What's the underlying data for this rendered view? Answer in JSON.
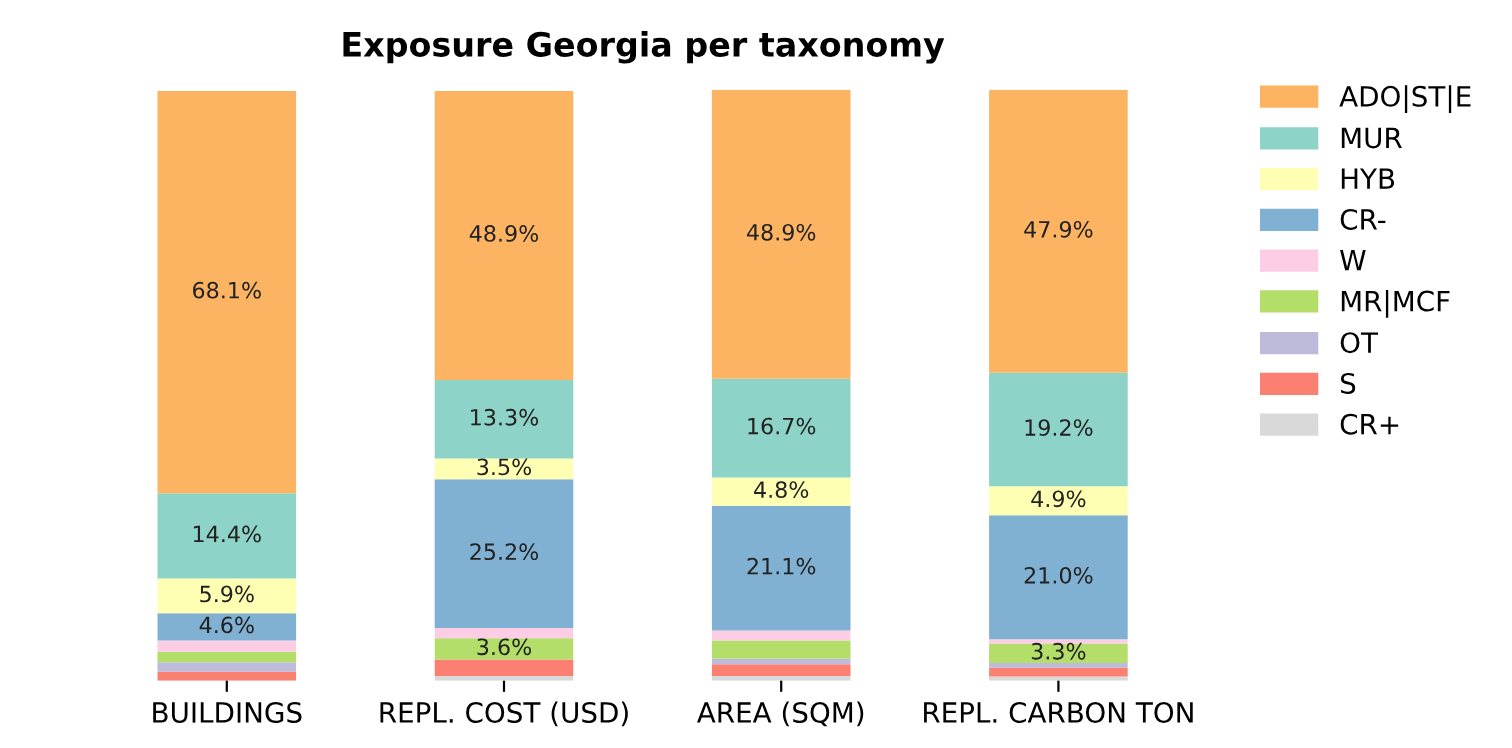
{
  "chart_data": {
    "type": "bar",
    "title": "Exposure Georgia per taxonomy",
    "stacked": true,
    "legend": "top right",
    "categories": [
      "BUILDINGS",
      "REPL. COST (USD)",
      "AREA (SQM)",
      "REPL. CARBON TON"
    ],
    "series": [
      {
        "name": "CR+",
        "color": "#d9d9d9",
        "values": [
          null,
          0.8,
          0.8,
          0.7
        ],
        "value_labels": [
          null,
          null,
          null,
          null
        ]
      },
      {
        "name": "S",
        "color": "#fb8072",
        "values": [
          1.5,
          2.8,
          2.0,
          1.5
        ],
        "value_labels": [
          null,
          null,
          null,
          null
        ]
      },
      {
        "name": "OT",
        "color": "#bebada",
        "values": [
          1.6,
          null,
          0.9,
          0.8
        ],
        "value_labels": [
          null,
          null,
          null,
          null
        ]
      },
      {
        "name": "MR|MCF",
        "color": "#b3de69",
        "values": [
          1.8,
          3.6,
          3.1,
          3.3
        ],
        "value_labels": [
          null,
          "3.6%",
          null,
          "3.3%"
        ]
      },
      {
        "name": "W",
        "color": "#fccde5",
        "values": [
          1.9,
          1.7,
          1.7,
          0.7
        ],
        "value_labels": [
          null,
          null,
          null,
          null
        ]
      },
      {
        "name": "CR-",
        "color": "#80b1d3",
        "values": [
          4.6,
          25.2,
          21.1,
          21.0
        ],
        "value_labels": [
          "4.6%",
          "25.2%",
          "21.1%",
          "21.0%"
        ]
      },
      {
        "name": "HYB",
        "color": "#ffffb3",
        "values": [
          5.9,
          3.5,
          4.8,
          4.9
        ],
        "value_labels": [
          "5.9%",
          "3.5%",
          "4.8%",
          "4.9%"
        ]
      },
      {
        "name": "MUR",
        "color": "#8dd3c7",
        "values": [
          14.4,
          13.3,
          16.7,
          19.2
        ],
        "value_labels": [
          "14.4%",
          "13.3%",
          "16.7%",
          "19.2%"
        ]
      },
      {
        "name": "ADO|ST|E",
        "color": "#fdb462",
        "values": [
          68.1,
          48.9,
          48.9,
          47.9
        ],
        "value_labels": [
          "68.1%",
          "48.9%",
          "48.9%",
          "47.9%"
        ]
      }
    ]
  }
}
